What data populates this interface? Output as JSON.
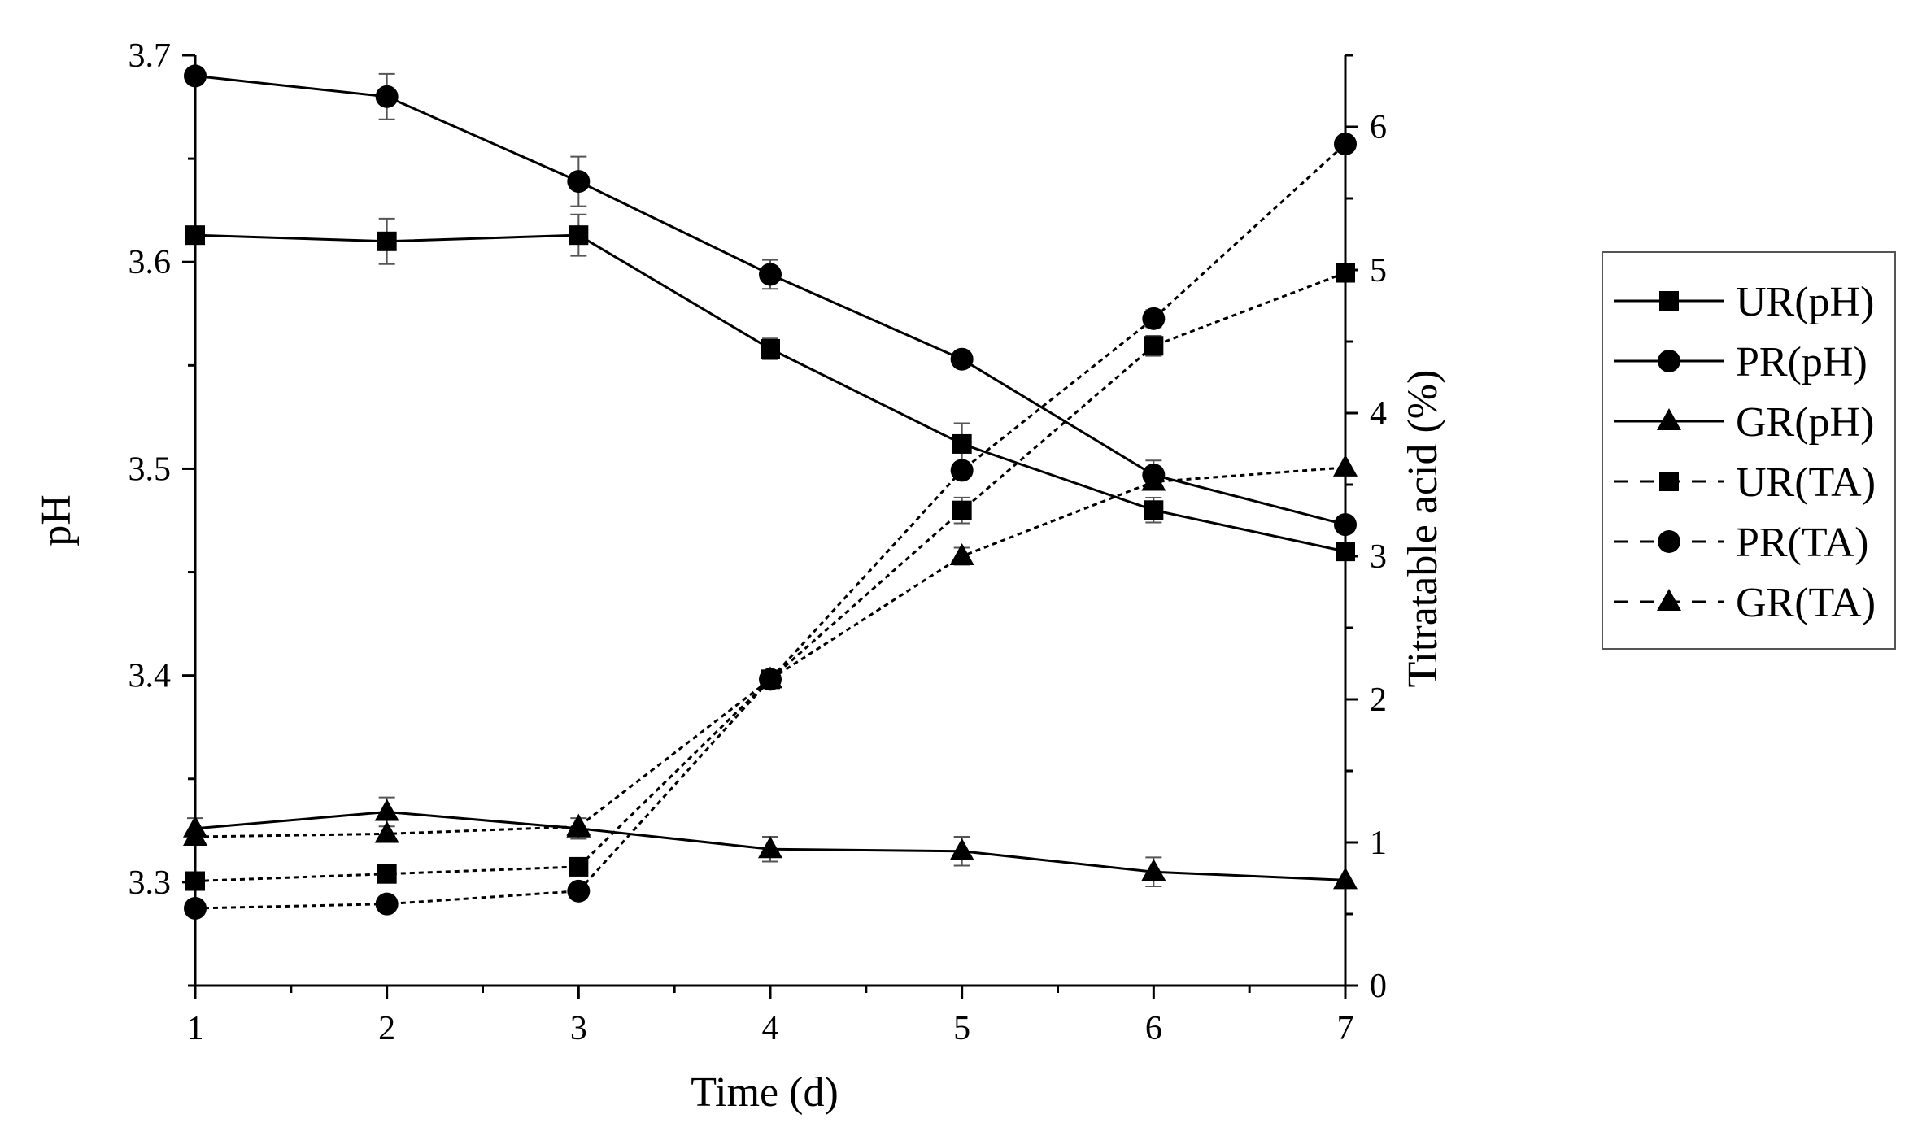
{
  "chart_data": {
    "type": "line",
    "title": "",
    "xlabel": "Time (d)",
    "ylabel": "pH",
    "y2label": "Titratable acid (%)",
    "x": [
      1,
      2,
      3,
      4,
      5,
      6,
      7
    ],
    "xlim": [
      1,
      7
    ],
    "ylim": [
      3.25,
      3.7
    ],
    "y2lim": [
      0,
      6.5
    ],
    "x_ticks": [
      "1",
      "2",
      "3",
      "4",
      "5",
      "6",
      "7"
    ],
    "y_ticks": [
      "3.3",
      "3.4",
      "3.5",
      "3.6",
      "3.7"
    ],
    "y2_ticks": [
      "0",
      "1",
      "2",
      "3",
      "4",
      "5",
      "6"
    ],
    "grid": false,
    "legend_position": "right",
    "series": [
      {
        "name": "UR(pH)",
        "axis": "left",
        "marker": "square",
        "dash": "solid",
        "values": [
          3.613,
          3.61,
          3.613,
          3.558,
          3.512,
          3.48,
          3.46
        ],
        "errors": [
          0,
          0.011,
          0.01,
          0.005,
          0.01,
          0.006,
          0
        ]
      },
      {
        "name": "PR(pH)",
        "axis": "left",
        "marker": "circle",
        "dash": "solid",
        "values": [
          3.69,
          3.68,
          3.639,
          3.594,
          3.553,
          3.497,
          3.473
        ],
        "errors": [
          0,
          0.011,
          0.012,
          0.007,
          0,
          0.007,
          0
        ]
      },
      {
        "name": "GR(pH)",
        "axis": "left",
        "marker": "triangle",
        "dash": "solid",
        "values": [
          3.326,
          3.334,
          3.326,
          3.316,
          3.315,
          3.305,
          3.301
        ],
        "errors": [
          0.005,
          0.007,
          0.005,
          0.006,
          0.007,
          0.007,
          0
        ]
      },
      {
        "name": "UR(TA)",
        "axis": "right",
        "marker": "square",
        "dash": "dashed",
        "values": [
          0.73,
          0.78,
          0.83,
          2.14,
          3.32,
          4.47,
          4.98
        ],
        "errors": [
          0,
          0,
          0,
          0.05,
          0.09,
          0.07,
          0
        ]
      },
      {
        "name": "PR(TA)",
        "axis": "right",
        "marker": "circle",
        "dash": "dashed",
        "values": [
          0.54,
          0.57,
          0.66,
          2.14,
          3.6,
          4.66,
          5.88
        ],
        "errors": [
          0,
          0,
          0,
          0.05,
          0,
          0.06,
          0
        ]
      },
      {
        "name": "GR(TA)",
        "axis": "right",
        "marker": "triangle",
        "dash": "dashed",
        "values": [
          1.04,
          1.06,
          1.11,
          2.14,
          3.0,
          3.52,
          3.62
        ],
        "errors": [
          0,
          0,
          0,
          0,
          0.06,
          0,
          0
        ]
      }
    ]
  }
}
